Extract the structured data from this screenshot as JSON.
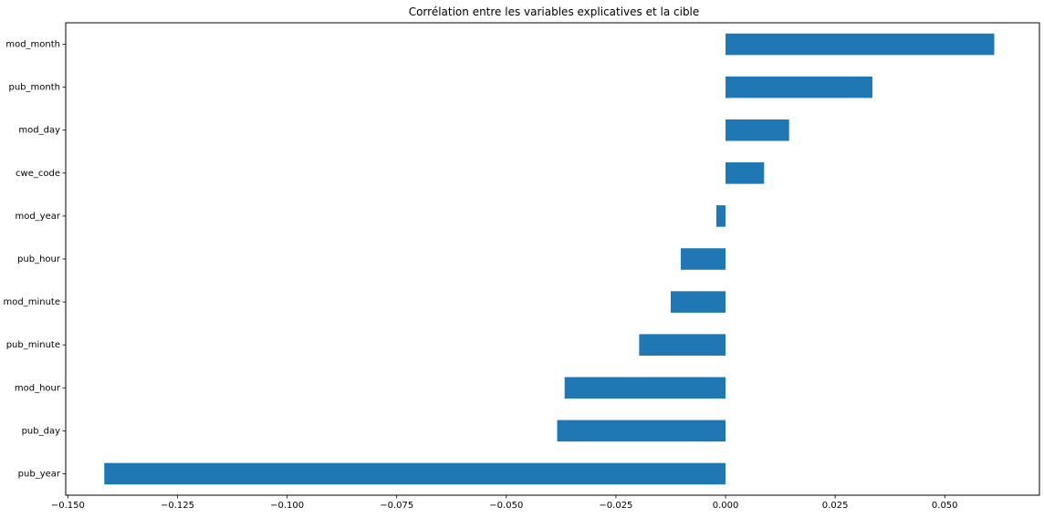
{
  "chart_data": {
    "type": "bar",
    "orientation": "horizontal",
    "title": "Corrélation entre les variables explicatives et la cible",
    "xlabel": "",
    "ylabel": "",
    "categories": [
      "mod_month",
      "pub_month",
      "mod_day",
      "cwe_code",
      "mod_year",
      "pub_hour",
      "mod_minute",
      "pub_minute",
      "mod_hour",
      "pub_day",
      "pub_year"
    ],
    "values": [
      0.0613,
      0.0335,
      0.0145,
      0.0088,
      -0.0021,
      -0.0102,
      -0.0125,
      -0.0197,
      -0.0367,
      -0.0384,
      -0.1417
    ],
    "xlim": [
      -0.1505,
      0.0716
    ],
    "xticks": [
      -0.15,
      -0.125,
      -0.1,
      -0.075,
      -0.05,
      -0.025,
      0.0,
      0.025,
      0.05
    ],
    "xtick_labels": [
      "−0.150",
      "−0.125",
      "−0.100",
      "−0.075",
      "−0.050",
      "−0.025",
      "0.000",
      "0.025",
      "0.050"
    ],
    "grid": false,
    "legend": false
  },
  "colors": {
    "bar": "#1f77b4",
    "axis": "#000000",
    "background": "#ffffff"
  }
}
